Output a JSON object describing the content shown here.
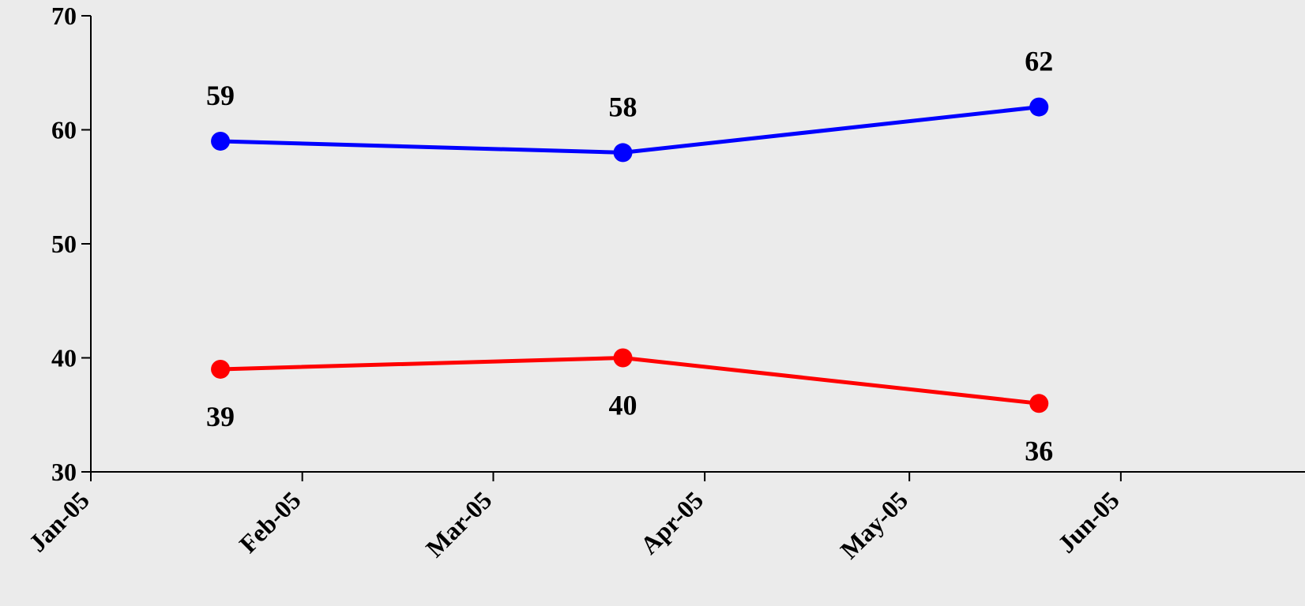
{
  "chart_data": {
    "type": "line",
    "title": "",
    "xlabel": "",
    "ylabel": "",
    "x_ticks": [
      "Jan-05",
      "Feb-05",
      "Mar-05",
      "Apr-05",
      "May-05",
      "Jun-05"
    ],
    "xlim": [
      "2005-01-01",
      "2005-06-28"
    ],
    "ylim": [
      30,
      70
    ],
    "y_ticks": [
      "30",
      "40",
      "50",
      "60",
      "70"
    ],
    "grid": false,
    "legend": "none",
    "background": "#ebebeb",
    "series": [
      {
        "color": "#0000ff",
        "label_position": "above",
        "points": [
          {
            "x": "2005-01-20",
            "y": 59,
            "label": "59"
          },
          {
            "x": "2005-03-20",
            "y": 58,
            "label": "58"
          },
          {
            "x": "2005-05-20",
            "y": 62,
            "label": "62"
          }
        ]
      },
      {
        "color": "#ff0000",
        "label_position": "below",
        "points": [
          {
            "x": "2005-01-20",
            "y": 39,
            "label": "39"
          },
          {
            "x": "2005-03-20",
            "y": 40,
            "label": "40"
          },
          {
            "x": "2005-05-20",
            "y": 36,
            "label": "36"
          }
        ]
      }
    ]
  }
}
